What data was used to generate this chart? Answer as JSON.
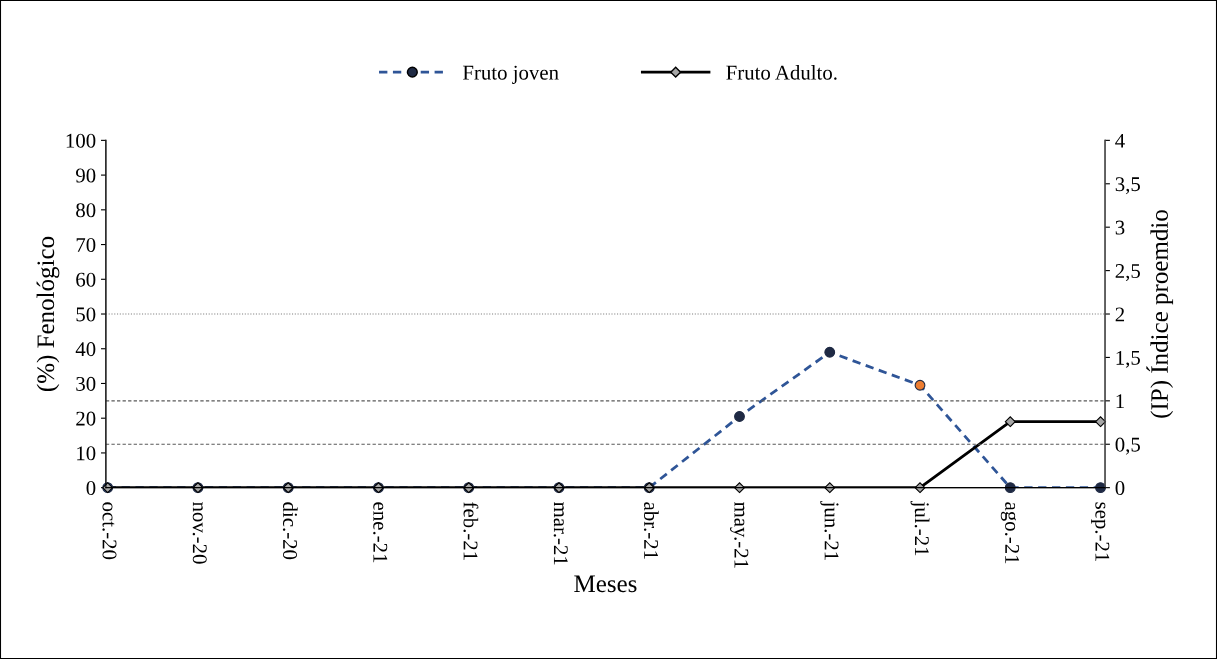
{
  "chart_data": {
    "type": "line",
    "xlabel": "Meses",
    "ylabel": "(%) Fenológico",
    "y2label": "(IP) Índice proemdio",
    "categories": [
      "oct.-20",
      "nov.-20",
      "dic.-20",
      "ene.-21",
      "feb.-21",
      "mar.-21",
      "abr.-21",
      "may.-21",
      "jun.-21",
      "jul.-21",
      "ago.-21",
      "sep.-21"
    ],
    "series": [
      {
        "name": "Fruto joven",
        "color": "#2f5597",
        "line_style": "dashed",
        "marker": "circle",
        "colors": [
          "#2f5597",
          "#1f2a44",
          "#1f2a44",
          "#1f2a44",
          "#1f2a44",
          "#1f2a44",
          "#1f2a44",
          "#1f2a44",
          "#1f2a44",
          "#ed7d31",
          "#1f2a44",
          "#1f2a44"
        ],
        "values": [
          0,
          0,
          0,
          0,
          0,
          0,
          0,
          20.5,
          39,
          29.5,
          0,
          0
        ]
      },
      {
        "name": "Fruto Adulto.",
        "color": "#000000",
        "line_style": "solid",
        "marker": "diamond",
        "colors": [
          "#a6a6a6",
          "#a6a6a6",
          "#a6a6a6",
          "#a6a6a6",
          "#a6a6a6",
          "#a6a6a6",
          "#a6a6a6",
          "#a6a6a6",
          "#a6a6a6",
          "#a6a6a6",
          "#a6a6a6",
          "#a6a6a6"
        ],
        "values": [
          0,
          0,
          0,
          0,
          0,
          0,
          0,
          0,
          0,
          0,
          19,
          19
        ]
      }
    ],
    "ylim": [
      0,
      100
    ],
    "yticks": [
      0,
      10,
      20,
      30,
      40,
      50,
      60,
      70,
      80,
      90,
      100
    ],
    "y2lim": [
      0,
      4
    ],
    "y2ticks": [
      0,
      {
        "value": 0.5,
        "label": "0,5"
      },
      1,
      {
        "value": 1.5,
        "label": "1,5"
      },
      2,
      {
        "value": 2.5,
        "label": "2,5"
      },
      3,
      {
        "value": 3.5,
        "label": "3,5"
      },
      4
    ],
    "ref_lines": [
      {
        "axis": "y2",
        "value": 2,
        "color": "#7f7f7f",
        "line_style": "dotted"
      },
      {
        "axis": "y2",
        "value": 1,
        "color": "#595959",
        "line_style": "dashed"
      },
      {
        "axis": "y2",
        "value": 0.5,
        "color": "#595959",
        "line_style": "dashed"
      }
    ],
    "legend": "top",
    "grid": false
  }
}
